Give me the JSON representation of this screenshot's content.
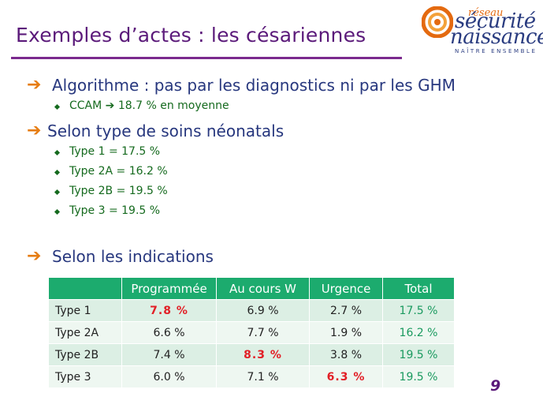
{
  "slide": {
    "title": "Exemples d’actes : les césariennes",
    "page_number": "9"
  },
  "logo": {
    "line1": "réseau",
    "line2": "sécurité",
    "line3": "naissance",
    "tagline": "NAÎTRE ENSEMBLE",
    "colors": {
      "orange": "#e46a10",
      "blue": "#2a3c80"
    }
  },
  "icons": {
    "bullet_arrow": "orange-right-arrow-icon",
    "sub_bullet": "green-diamond-icon"
  },
  "sections": [
    {
      "heading": "Algorithme : pas par les diagnostics ni par les GHM",
      "items": [
        {
          "pre": "CCAM",
          "arrow": "➔",
          "post": "18.7 % en moyenne"
        }
      ]
    },
    {
      "heading": "Selon type de soins néonatals",
      "items": [
        {
          "text": "Type 1 = 17.5 %"
        },
        {
          "text": "Type 2A = 16.2 %"
        },
        {
          "text": "Type 2B = 19.5 %"
        },
        {
          "text": "Type 3 = 19.5 %"
        }
      ]
    },
    {
      "heading": "Selon les indications",
      "items": []
    }
  ],
  "arrow_glyph": "➔",
  "table": {
    "columns": [
      "",
      "Programmée",
      "Au cours W",
      "Urgence",
      "Total"
    ],
    "rows": [
      {
        "label": "Type 1",
        "programmee": "7.8 %",
        "au_cours": "6.9 %",
        "urgence": "2.7 %",
        "total": "17.5 %"
      },
      {
        "label": "Type 2A",
        "programmee": "6.6 %",
        "au_cours": "7.7 %",
        "urgence": "1.9 %",
        "total": "16.2 %"
      },
      {
        "label": "Type 2B",
        "programmee": "7.4 %",
        "au_cours": "8.3 %",
        "urgence": "3.8 %",
        "total": "19.5 %"
      },
      {
        "label": "Type 3",
        "programmee": "6.0 %",
        "au_cours": "7.1 %",
        "urgence": "6.3 %",
        "total": "19.5 %"
      }
    ],
    "colors": {
      "header": "#1cab6e",
      "highlight": "#e21f26",
      "total": "#1a9a5f"
    }
  }
}
